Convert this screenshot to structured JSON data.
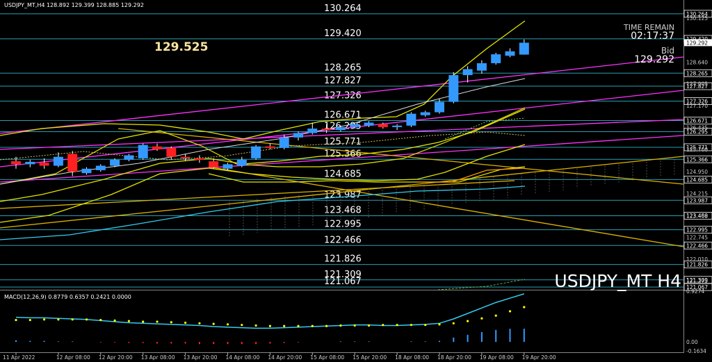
{
  "header": {
    "symbol_info": "USDJPY_MT,H4  128.892 129.399 128.885 129.292",
    "macd_info": "MACD(12,26,9) 0.8779 0.6357 0.2421 0.0000"
  },
  "overlay": {
    "big_price": "129.525",
    "time_remain_label": "TIME REMAIN",
    "time_remain_value": "02:17:37",
    "bid_label": "Bid",
    "bid_value": "129.292",
    "watermark": "USDJPY_MT H4"
  },
  "colors": {
    "background": "#000000",
    "bull": "#3399ff",
    "bear": "#ff2020",
    "level_line": "#2a9fb5",
    "ma_yellow": "#e6e600",
    "trend_magenta": "#ff33ff",
    "trend_orange": "#e0b400",
    "macd_line": "#33ccee",
    "macd_signal": "#ffff00"
  },
  "chart_data": {
    "type": "candlestick",
    "symbol": "USDJPY_MT",
    "timeframe": "H4",
    "ylim": [
      121.0,
      130.4
    ],
    "y_axis_labels": [
      "130.125",
      "128.640",
      "127.905",
      "127.170",
      "126.435",
      "125.700",
      "124.950",
      "124.215",
      "123.480",
      "122.745",
      "122.010",
      "121.275"
    ],
    "x_tick_labels": [
      "11 Apr 2022",
      "12 Apr 08:00",
      "12 Apr 20:00",
      "13 Apr 08:00",
      "13 Apr 20:00",
      "14 Apr 08:00",
      "14 Apr 20:00",
      "15 Apr 08:00",
      "15 Apr 20:00",
      "18 Apr 08:00",
      "18 Apr 20:00",
      "19 Apr 08:00",
      "19 Apr 20:00"
    ],
    "x_tick_bars": [
      0,
      3,
      6,
      9,
      12,
      15,
      18,
      21,
      24,
      27,
      30,
      33,
      36
    ],
    "levels": [
      130.264,
      129.42,
      128.265,
      127.827,
      127.326,
      126.671,
      126.295,
      125.771,
      125.366,
      124.685,
      123.987,
      123.468,
      122.995,
      122.466,
      121.826,
      121.309,
      121.067
    ],
    "current_price": 129.292,
    "candles": [
      {
        "o": 125.3,
        "h": 125.45,
        "l": 125.05,
        "c": 125.2
      },
      {
        "o": 125.2,
        "h": 125.35,
        "l": 125.1,
        "c": 125.28
      },
      {
        "o": 125.25,
        "h": 125.4,
        "l": 125.05,
        "c": 125.15
      },
      {
        "o": 125.15,
        "h": 125.6,
        "l": 125.1,
        "c": 125.45
      },
      {
        "o": 125.55,
        "h": 125.65,
        "l": 124.8,
        "c": 124.95
      },
      {
        "o": 124.9,
        "h": 125.1,
        "l": 124.85,
        "c": 125.05
      },
      {
        "o": 125.0,
        "h": 125.2,
        "l": 124.95,
        "c": 125.15
      },
      {
        "o": 125.15,
        "h": 125.4,
        "l": 125.1,
        "c": 125.35
      },
      {
        "o": 125.35,
        "h": 125.55,
        "l": 125.3,
        "c": 125.5
      },
      {
        "o": 125.4,
        "h": 125.9,
        "l": 125.35,
        "c": 125.85
      },
      {
        "o": 125.8,
        "h": 125.9,
        "l": 125.65,
        "c": 125.7
      },
      {
        "o": 125.75,
        "h": 125.8,
        "l": 125.35,
        "c": 125.45
      },
      {
        "o": 125.45,
        "h": 125.55,
        "l": 125.3,
        "c": 125.4
      },
      {
        "o": 125.4,
        "h": 125.5,
        "l": 125.25,
        "c": 125.35
      },
      {
        "o": 125.3,
        "h": 125.4,
        "l": 125.05,
        "c": 125.1
      },
      {
        "o": 125.05,
        "h": 125.25,
        "l": 125.0,
        "c": 125.2
      },
      {
        "o": 125.15,
        "h": 125.45,
        "l": 125.1,
        "c": 125.35
      },
      {
        "o": 125.4,
        "h": 125.85,
        "l": 125.35,
        "c": 125.8
      },
      {
        "o": 125.8,
        "h": 125.9,
        "l": 125.7,
        "c": 125.75
      },
      {
        "o": 125.75,
        "h": 126.2,
        "l": 125.7,
        "c": 126.1
      },
      {
        "o": 126.1,
        "h": 126.3,
        "l": 126.0,
        "c": 126.25
      },
      {
        "o": 126.25,
        "h": 126.6,
        "l": 126.2,
        "c": 126.4
      },
      {
        "o": 126.4,
        "h": 126.55,
        "l": 126.25,
        "c": 126.35
      },
      {
        "o": 126.35,
        "h": 126.5,
        "l": 126.3,
        "c": 126.45
      },
      {
        "o": 126.45,
        "h": 126.6,
        "l": 126.4,
        "c": 126.55
      },
      {
        "o": 126.5,
        "h": 126.65,
        "l": 126.45,
        "c": 126.6
      },
      {
        "o": 126.55,
        "h": 126.6,
        "l": 126.4,
        "c": 126.45
      },
      {
        "o": 126.45,
        "h": 126.55,
        "l": 126.35,
        "c": 126.5
      },
      {
        "o": 126.5,
        "h": 126.95,
        "l": 126.45,
        "c": 126.9
      },
      {
        "o": 126.85,
        "h": 127.0,
        "l": 126.8,
        "c": 126.95
      },
      {
        "o": 126.95,
        "h": 127.4,
        "l": 126.9,
        "c": 127.3
      },
      {
        "o": 127.3,
        "h": 128.3,
        "l": 127.25,
        "c": 128.2
      },
      {
        "o": 128.2,
        "h": 128.5,
        "l": 127.95,
        "c": 128.4
      },
      {
        "o": 128.35,
        "h": 128.7,
        "l": 128.25,
        "c": 128.6
      },
      {
        "o": 128.6,
        "h": 128.95,
        "l": 128.55,
        "c": 128.9
      },
      {
        "o": 128.85,
        "h": 129.1,
        "l": 128.8,
        "c": 129.0
      },
      {
        "o": 128.89,
        "h": 129.4,
        "l": 128.885,
        "c": 129.29
      }
    ],
    "macd": {
      "label": "MACD(12,26,9)",
      "values": [
        0.8779,
        0.6357,
        0.2421,
        0.0
      ],
      "axis_labels": [
        "0.9274",
        "0.00",
        "-0.1634"
      ],
      "ylim": [
        -0.1634,
        0.9274
      ],
      "main": [
        0.45,
        0.44,
        0.44,
        0.43,
        0.42,
        0.41,
        0.39,
        0.37,
        0.35,
        0.34,
        0.33,
        0.32,
        0.31,
        0.3,
        0.28,
        0.27,
        0.26,
        0.25,
        0.25,
        0.26,
        0.27,
        0.28,
        0.29,
        0.3,
        0.31,
        0.31,
        0.3,
        0.3,
        0.31,
        0.32,
        0.34,
        0.42,
        0.52,
        0.62,
        0.72,
        0.8,
        0.8779
      ],
      "signal": [
        0.4,
        0.4,
        0.41,
        0.41,
        0.41,
        0.41,
        0.4,
        0.39,
        0.38,
        0.37,
        0.37,
        0.36,
        0.35,
        0.34,
        0.33,
        0.32,
        0.31,
        0.3,
        0.29,
        0.29,
        0.29,
        0.29,
        0.29,
        0.3,
        0.3,
        0.3,
        0.31,
        0.31,
        0.31,
        0.31,
        0.32,
        0.34,
        0.38,
        0.43,
        0.48,
        0.56,
        0.6357
      ],
      "histogram": [
        0.03,
        0.02,
        0.02,
        0.01,
        0.01,
        0.0,
        -0.01,
        -0.01,
        -0.02,
        -0.02,
        -0.03,
        -0.03,
        -0.03,
        -0.04,
        -0.04,
        -0.04,
        -0.04,
        -0.04,
        -0.03,
        -0.02,
        -0.01,
        0.0,
        0.0,
        0.01,
        0.01,
        0.01,
        0.0,
        0.0,
        0.01,
        0.01,
        0.02,
        0.08,
        0.13,
        0.18,
        0.22,
        0.24,
        0.2421
      ]
    }
  }
}
